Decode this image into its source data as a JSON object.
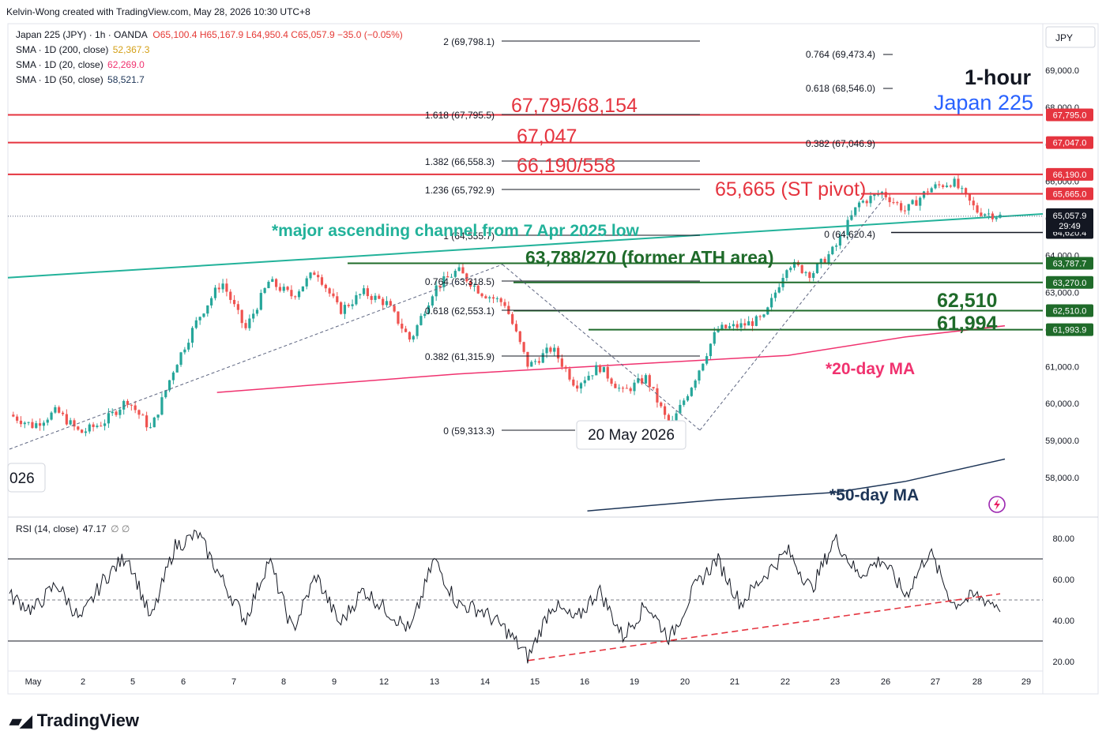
{
  "header": {
    "credit": "Kelvin-Wong created with TradingView.com, May 28, 2026 10:30 UTC+8"
  },
  "legend": {
    "symbol_line": "Japan 225 (JPY) · 1h · OANDA",
    "ohlc": {
      "o": "O65,100.4",
      "h": "H65,167.9",
      "l": "L64,950.4",
      "c": "C65,057.9",
      "chg": "−35.0 (−0.05%)"
    },
    "sma200_label": "SMA · 1D (200, close)",
    "sma200_value": "52,367.3",
    "sma20_label": "SMA · 1D (20, close)",
    "sma20_value": "62,269.0",
    "sma50_label": "SMA · 1D (50, close)",
    "sma50_value": "58,521.7",
    "rsi_label": "RSI (14, close)",
    "rsi_value": "47.17",
    "rsi_extra": "∅ ∅"
  },
  "currency": "JPY",
  "titles": {
    "timeframe": "1-hour",
    "instrument": "Japan 225"
  },
  "annotations": {
    "lvl_67795": "67,795/68,154",
    "lvl_67047": "67,047",
    "lvl_66190": "66,190/558",
    "lvl_65665": "65,665 (ST pivot)",
    "channel": "*major ascending channel from 7 Apr 2025 low",
    "ath": "63,788/270 (former ATH area)",
    "lvl_62510": "62,510",
    "lvl_61994": "61,994",
    "ma20": "*20-day MA",
    "ma50": "*50-day MA",
    "date_box": "20 May 2026",
    "cut_box": "026"
  },
  "fib_labels": [
    "2 (69,798.1)",
    "1.618 (67,795.5)",
    "1.382 (66,558.3)",
    "1.236 (65,792.9)",
    "1 (64,555.7)",
    "0.764 (63,318.5)",
    "0.618 (62,553.1)",
    "0.382 (61,315.9)",
    "0 (59,313.3)"
  ],
  "fib_labels_right": [
    "0.764 (69,473.4)",
    "0.618 (68,546.0)",
    "0.382 (67,046.9)",
    "0 (64,620.4)"
  ],
  "price_tags": [
    "67,795.0",
    "67,047.0",
    "66,190.0",
    "65,665.0",
    "65,057.9",
    "64,620.4",
    "63,787.7",
    "63,270.0",
    "62,510.0",
    "61,993.9"
  ],
  "countdown": "29:49",
  "colors": {
    "up": "#26a69a",
    "down": "#ef5350",
    "red_level": "#e5343f",
    "green_level": "#1f6b2a",
    "channel": "#22b29a",
    "ma20": "#f0326f",
    "ma50": "#1d3557",
    "blue_title": "#2962ff"
  },
  "branding": {
    "logo": "TradingView"
  },
  "chart_data": [
    {
      "type": "candlestick",
      "title": "Japan 225 (JPY) · 1h · OANDA",
      "x_ticks": [
        "May",
        "2",
        "5",
        "6",
        "7",
        "8",
        "9",
        "12",
        "13",
        "14",
        "15",
        "16",
        "19",
        "20",
        "21",
        "22",
        "23",
        "26",
        "27",
        "28",
        "29"
      ],
      "y_ticks": [
        69000,
        68000,
        67000,
        66000,
        65000,
        64000,
        63000,
        62000,
        61000,
        60000,
        59000,
        58000
      ],
      "ylim": [
        57200,
        70800
      ],
      "keypoints": [
        [
          0,
          59700
        ],
        [
          1,
          59400
        ],
        [
          2,
          59800
        ],
        [
          3,
          59200
        ],
        [
          4,
          59500
        ],
        [
          5,
          60100
        ],
        [
          6,
          59300
        ],
        [
          7,
          61000
        ],
        [
          8,
          62300
        ],
        [
          9,
          63300
        ],
        [
          10,
          62000
        ],
        [
          11,
          63300
        ],
        [
          12,
          62900
        ],
        [
          13,
          63600
        ],
        [
          14,
          62500
        ],
        [
          15,
          63000
        ],
        [
          16,
          62700
        ],
        [
          17,
          61700
        ],
        [
          18,
          63100
        ],
        [
          19,
          63600
        ],
        [
          20,
          63000
        ],
        [
          21,
          62700
        ],
        [
          22,
          61000
        ],
        [
          23,
          61500
        ],
        [
          24,
          60500
        ],
        [
          25,
          61000
        ],
        [
          26,
          60300
        ],
        [
          27,
          60700
        ],
        [
          28,
          59350
        ],
        [
          29,
          60600
        ],
        [
          30,
          62000
        ],
        [
          31,
          62100
        ],
        [
          32,
          62300
        ],
        [
          33,
          63800
        ],
        [
          34,
          63500
        ],
        [
          35,
          64200
        ],
        [
          36,
          65400
        ],
        [
          37,
          65700
        ],
        [
          38,
          65200
        ],
        [
          39,
          65800
        ],
        [
          40,
          66000
        ],
        [
          41,
          65200
        ],
        [
          42,
          65060
        ]
      ],
      "levels": [
        {
          "value": 67795,
          "label": "67,795.0",
          "kind": "resistance"
        },
        {
          "value": 67047,
          "label": "67,047.0",
          "kind": "resistance"
        },
        {
          "value": 66190,
          "label": "66,190.0",
          "kind": "resistance"
        },
        {
          "value": 65665,
          "label": "65,665.0",
          "kind": "pivot"
        },
        {
          "value": 64620.4,
          "label": "64,620.4",
          "kind": "fib"
        },
        {
          "value": 63787.7,
          "label": "63,787.7",
          "kind": "support"
        },
        {
          "value": 63270,
          "label": "63,270.0",
          "kind": "support"
        },
        {
          "value": 62510,
          "label": "62,510.0",
          "kind": "support"
        },
        {
          "value": 61993.9,
          "label": "61,993.9",
          "kind": "support"
        }
      ],
      "sma20": [
        [
          8.8,
          60300
        ],
        [
          19,
          60800
        ],
        [
          26,
          61050
        ],
        [
          33,
          61300
        ],
        [
          38,
          61800
        ],
        [
          42.2,
          62100
        ]
      ],
      "sma50": [
        [
          24.5,
          57100
        ],
        [
          30,
          57400
        ],
        [
          35,
          57600
        ],
        [
          38,
          57900
        ],
        [
          42.2,
          58500
        ]
      ],
      "channel": [
        [
          0,
          63400
        ],
        [
          42.6,
          65060
        ]
      ]
    },
    {
      "type": "line",
      "title": "RSI (14, close)",
      "y_ticks": [
        80,
        60,
        40,
        20
      ],
      "ylim": [
        15,
        88
      ],
      "bands": [
        70,
        50,
        30
      ],
      "keypoints": [
        [
          0,
          52
        ],
        [
          1,
          45
        ],
        [
          2,
          58
        ],
        [
          3,
          40
        ],
        [
          4,
          60
        ],
        [
          5,
          72
        ],
        [
          6,
          40
        ],
        [
          7,
          76
        ],
        [
          8,
          82
        ],
        [
          9,
          60
        ],
        [
          10,
          40
        ],
        [
          11,
          70
        ],
        [
          12,
          35
        ],
        [
          13,
          62
        ],
        [
          14,
          38
        ],
        [
          15,
          55
        ],
        [
          16,
          45
        ],
        [
          17,
          35
        ],
        [
          18,
          70
        ],
        [
          19,
          48
        ],
        [
          20,
          45
        ],
        [
          21,
          36
        ],
        [
          22,
          22
        ],
        [
          23,
          48
        ],
        [
          24,
          40
        ],
        [
          25,
          55
        ],
        [
          26,
          32
        ],
        [
          27,
          48
        ],
        [
          28,
          31
        ],
        [
          29,
          55
        ],
        [
          30,
          70
        ],
        [
          31,
          48
        ],
        [
          32,
          62
        ],
        [
          33,
          74
        ],
        [
          34,
          55
        ],
        [
          35,
          80
        ],
        [
          36,
          62
        ],
        [
          37,
          70
        ],
        [
          38,
          52
        ],
        [
          39,
          74
        ],
        [
          40,
          48
        ],
        [
          41,
          52
        ],
        [
          42,
          47
        ]
      ],
      "trendline": [
        [
          22,
          20.5
        ],
        [
          42,
          53
        ]
      ]
    }
  ]
}
